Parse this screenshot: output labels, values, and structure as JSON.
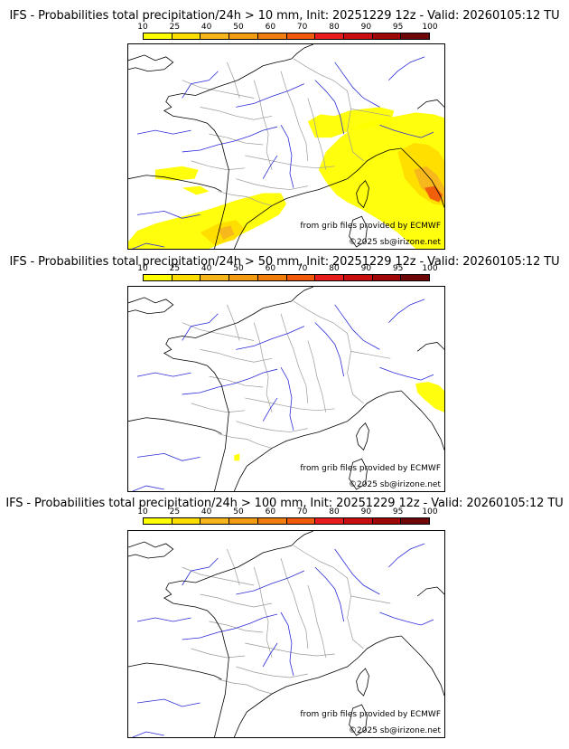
{
  "panels": [
    {
      "title": "IFS - Probabilities total precipitation/24h > 10 mm, Init: 20251229 12z - Valid: 20260105:12 TU",
      "precip_level": "heavy"
    },
    {
      "title": "IFS - Probabilities total precipitation/24h > 50 mm, Init: 20251229 12z - Valid: 20260105:12 TU",
      "precip_level": "light"
    },
    {
      "title": "IFS - Probabilities total precipitation/24h > 100 mm, Init: 20251229 12z - Valid: 20260105:12 TU",
      "precip_level": "none"
    }
  ],
  "colorbar": {
    "ticks": [
      "10",
      "25",
      "40",
      "50",
      "60",
      "70",
      "80",
      "90",
      "95",
      "100"
    ],
    "colors": [
      "#ffff00",
      "#ffdd00",
      "#f7b51c",
      "#f39c12",
      "#f07d0c",
      "#f05a0a",
      "#e81e1e",
      "#c80e0e",
      "#a00808",
      "#6e0808"
    ]
  },
  "credits": {
    "source": "from grib files provided by ECMWF",
    "copyright": "©2025 sb@irizone.net"
  },
  "colors": {
    "coast": "#000000",
    "rivers": "#2b2bd9",
    "borders": "#9a9a9a"
  }
}
